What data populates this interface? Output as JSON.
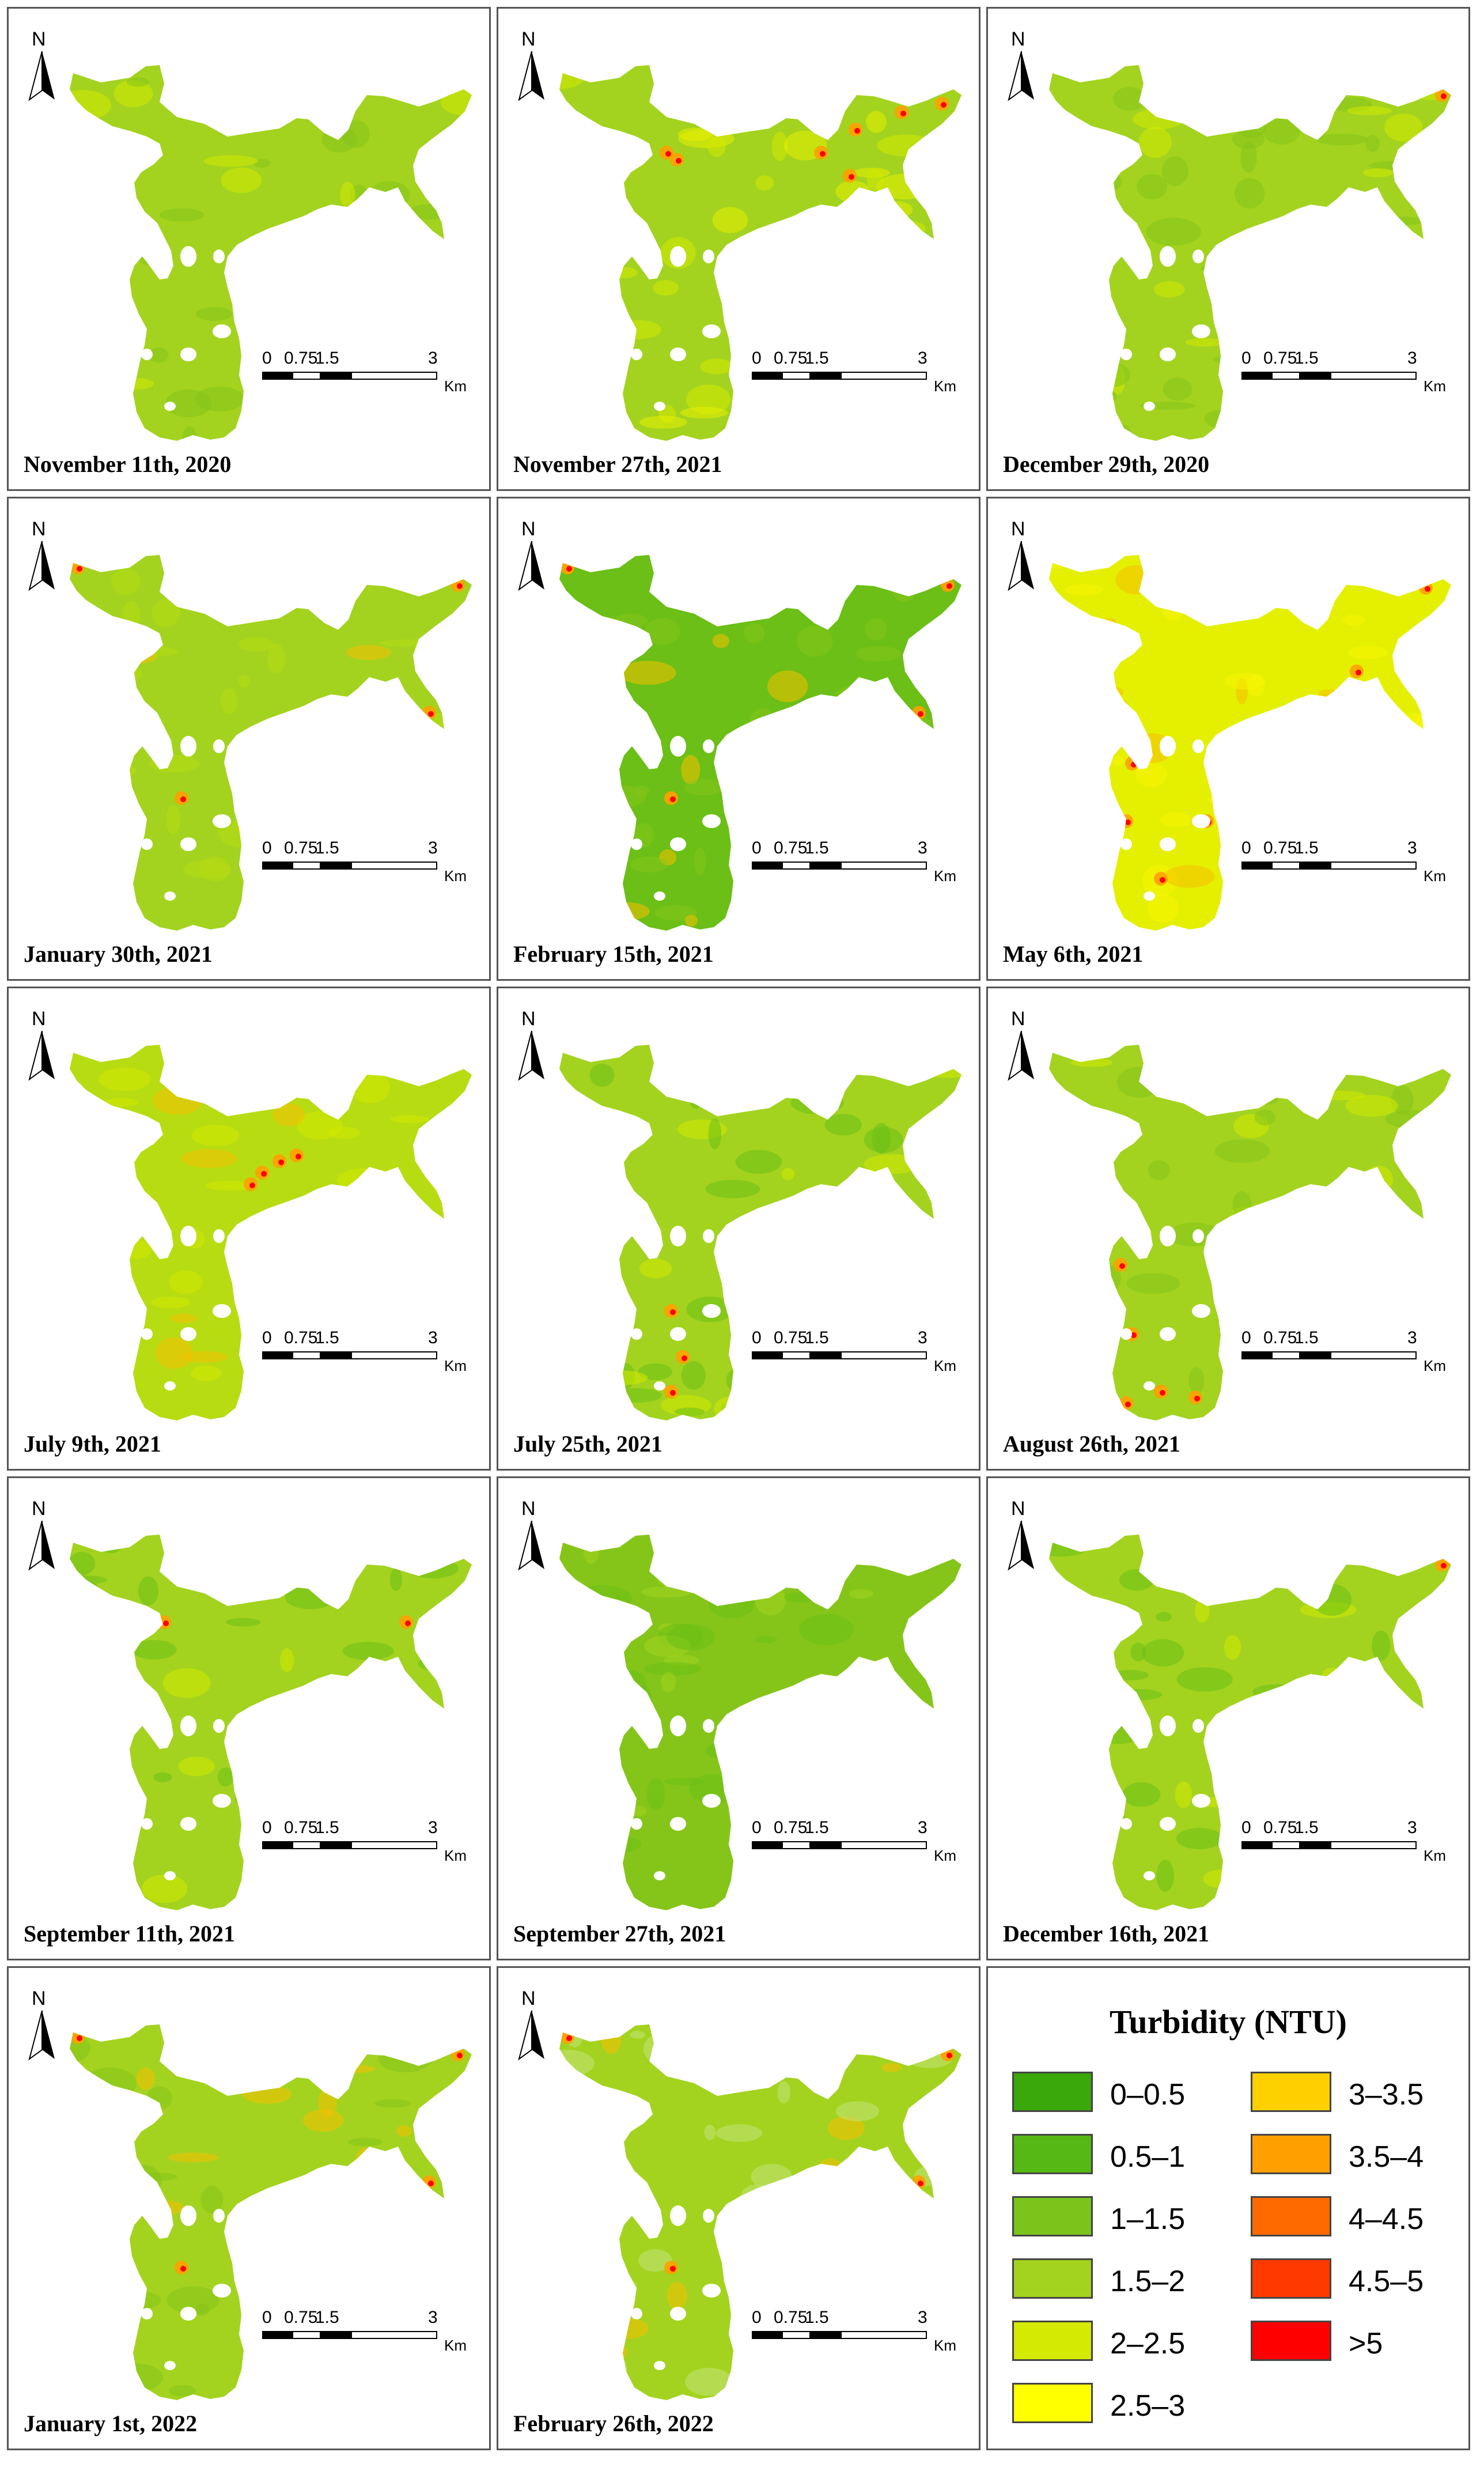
{
  "panels": [
    {
      "date": "November 11th, 2020",
      "main": "#a3d31f",
      "speckle": "#85c51a",
      "accent": "#d4ea00",
      "hot": []
    },
    {
      "date": "November 27th, 2021",
      "main": "#a3d31f",
      "speckle": "#d4ea00",
      "accent": "#e8ef00",
      "hot": [
        "ne-edge",
        "west-lobe"
      ]
    },
    {
      "date": "December 29th, 2020",
      "main": "#a3d31f",
      "speckle": "#85c51a",
      "accent": "#d4ea00",
      "hot": [
        "ne-tip"
      ]
    },
    {
      "date": "January 30th, 2021",
      "main": "#a3d31f",
      "speckle": "#b7dc12",
      "accent": "#f8c000",
      "hot": [
        "tips"
      ]
    },
    {
      "date": "February 15th, 2021",
      "main": "#6bbf16",
      "speckle": "#85c51a",
      "accent": "#f8c000",
      "hot": [
        "tips"
      ]
    },
    {
      "date": "May 6th, 2021",
      "main": "#e4f000",
      "speckle": "#f7f500",
      "accent": "#f8c000",
      "hot": [
        "edges"
      ]
    },
    {
      "date": "July 9th, 2021",
      "main": "#b7dc12",
      "speckle": "#d4ea00",
      "accent": "#f8c000",
      "hot": [
        "center"
      ]
    },
    {
      "date": "July 25th, 2021",
      "main": "#a3d31f",
      "speckle": "#6bbf16",
      "accent": "#d4ea00",
      "hot": [
        "south"
      ]
    },
    {
      "date": "August 26th, 2021",
      "main": "#a3d31f",
      "speckle": "#85c51a",
      "accent": "#d4ea00",
      "hot": [
        "south-edge"
      ]
    },
    {
      "date": "September 11th, 2021",
      "main": "#a3d31f",
      "speckle": "#6bbf16",
      "accent": "#d4ea00",
      "hot": [
        "spots"
      ]
    },
    {
      "date": "September 27th, 2021",
      "main": "#85c51a",
      "speckle": "#6bbf16",
      "accent": "#a3d31f",
      "hot": []
    },
    {
      "date": "December 16th, 2021",
      "main": "#a3d31f",
      "speckle": "#6bbf16",
      "accent": "#d4ea00",
      "hot": [
        "ne-tip"
      ]
    },
    {
      "date": "January 1st, 2022",
      "main": "#a3d31f",
      "speckle": "#85c51a",
      "accent": "#f8c000",
      "hot": [
        "tips"
      ]
    },
    {
      "date": "February 26th, 2022",
      "main": "#a3d31f",
      "speckle": "#c5e37a",
      "accent": "#f8c000",
      "hot": [
        "tips"
      ]
    }
  ],
  "scale": {
    "ticks": [
      "0",
      "0.75",
      "1.5",
      "3"
    ],
    "unit": "Km"
  },
  "north_label": "N",
  "legend": {
    "title": "Turbidity (NTU)",
    "items": [
      {
        "label": "0–0.5",
        "color": "#3aa80a"
      },
      {
        "label": "0.5–1",
        "color": "#55b814"
      },
      {
        "label": "1–1.5",
        "color": "#7ac41c"
      },
      {
        "label": "1.5–2",
        "color": "#a3d31f"
      },
      {
        "label": "2–2.5",
        "color": "#d4ea00"
      },
      {
        "label": "2.5–3",
        "color": "#ffff00"
      },
      {
        "label": "3–3.5",
        "color": "#ffd000"
      },
      {
        "label": "3.5–4",
        "color": "#ffa000"
      },
      {
        "label": "4–4.5",
        "color": "#ff6a00"
      },
      {
        "label": "4.5–5",
        "color": "#ff3a00"
      },
      {
        "label": ">5",
        "color": "#ff0000"
      }
    ]
  }
}
